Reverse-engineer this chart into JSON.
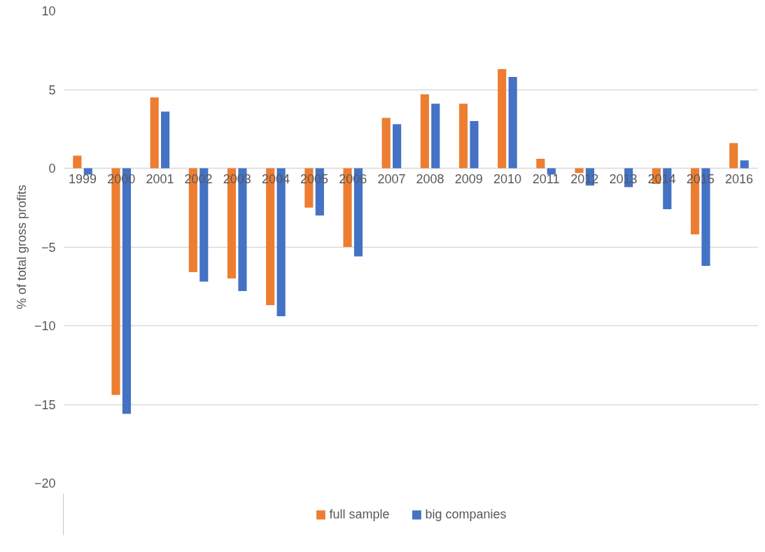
{
  "chart_data": {
    "type": "bar",
    "ylabel": "% of total gross profits",
    "categories": [
      "1999",
      "2000",
      "2001",
      "2002",
      "2003",
      "2004",
      "2005",
      "2006",
      "2007",
      "2008",
      "2009",
      "2010",
      "2011",
      "2012",
      "2013",
      "2014",
      "2015",
      "2016"
    ],
    "series": [
      {
        "name": "full sample",
        "color": "#ed7d31",
        "values": [
          0.8,
          -14.4,
          4.5,
          -6.6,
          -7.0,
          -8.7,
          -2.5,
          -5.0,
          3.2,
          4.7,
          4.1,
          6.3,
          0.6,
          -0.3,
          0,
          -1.0,
          -4.2,
          1.6
        ]
      },
      {
        "name": "big companies",
        "color": "#4472c4",
        "values": [
          -0.4,
          -15.6,
          3.6,
          -7.2,
          -7.8,
          -9.4,
          -3.0,
          -5.6,
          2.8,
          4.1,
          3.0,
          5.8,
          -0.4,
          -1.1,
          -1.2,
          -2.6,
          -6.2,
          0.5
        ]
      }
    ],
    "ylim": [
      -20,
      10
    ],
    "yticks": [
      -20,
      -15,
      -10,
      -5,
      0,
      5,
      10
    ],
    "grid": "y",
    "legend": "bottom"
  }
}
